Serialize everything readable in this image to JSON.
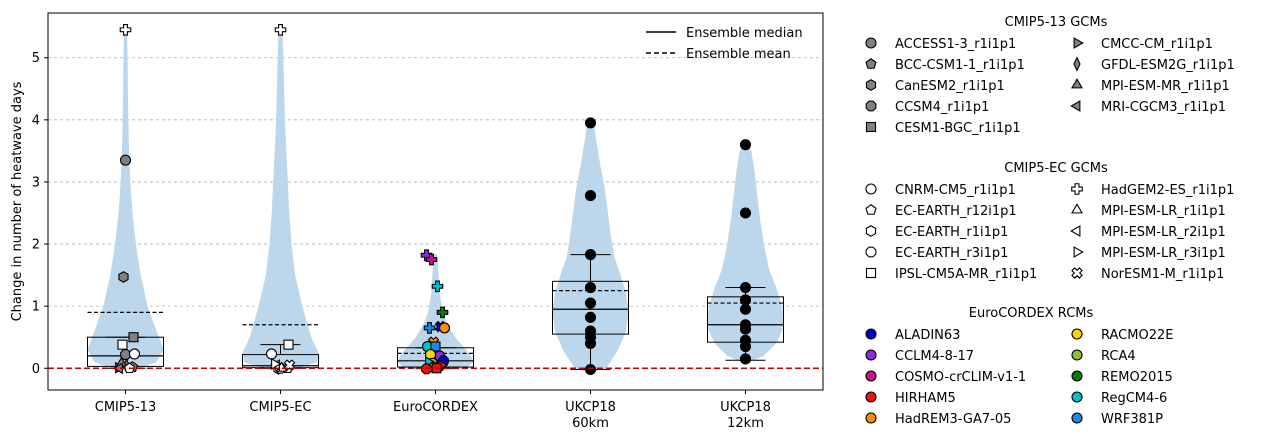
{
  "chart_data": {
    "type": "violin",
    "ylabel": "Change in number of heatwave days",
    "ylim": [
      -0.35,
      5.72
    ],
    "yticks": [
      0,
      1,
      2,
      3,
      4,
      5
    ],
    "grid": "horizontal dashed",
    "categories": [
      "CMIP5-13",
      "CMIP5-EC",
      "EuroCORDEX",
      "UKCP18\n60km",
      "UKCP18\n12km"
    ],
    "reference_line": 0,
    "plot_legend": {
      "position": "upper-right",
      "entries": [
        {
          "label": "Ensemble median",
          "style": "solid"
        },
        {
          "label": "Ensemble mean",
          "style": "dashed"
        }
      ]
    },
    "colors": {
      "violin": "#bcd6eb",
      "reference": "#c00000",
      "grid": "#b0b0b0"
    },
    "groups": [
      {
        "category": "CMIP5-13",
        "median": 0.2,
        "mean": 0.9,
        "q1": 0.03,
        "q3": 0.5,
        "wmin": 0,
        "wmax": 0.5,
        "violin": [
          [
            -0.05,
            0.02
          ],
          [
            0,
            0.2
          ],
          [
            0.1,
            0.45
          ],
          [
            0.3,
            0.55
          ],
          [
            0.6,
            0.45
          ],
          [
            1,
            0.32
          ],
          [
            1.5,
            0.22
          ],
          [
            2,
            0.15
          ],
          [
            2.5,
            0.1
          ],
          [
            3,
            0.07
          ],
          [
            3.5,
            0.05
          ],
          [
            4,
            0.04
          ],
          [
            4.5,
            0.035
          ],
          [
            5,
            0.03
          ],
          [
            5.45,
            0.02
          ]
        ],
        "points": [
          {
            "model": "ACCESS1-3_r1i1p1",
            "value": 3.35
          },
          {
            "model": "BCC-CSM1-1_r1i1p1",
            "value": 0.02
          },
          {
            "model": "CanESM2_r1i1p1",
            "value": 1.47
          },
          {
            "model": "CCSM4_r1i1p1",
            "value": 0.22
          },
          {
            "model": "CESM1-BGC_r1i1p1",
            "value": 0.5
          },
          {
            "model": "CMCC-CM_r1i1p1",
            "value": 0.01
          },
          {
            "model": "GFDL-ESM2G_r1i1p1",
            "value": 0.04
          },
          {
            "model": "MPI-ESM-MR_r1i1p1",
            "value": 0.08
          },
          {
            "model": "MRI-CGCM3_r1i1p1",
            "value": 0
          },
          {
            "model": "CNRM-CM5_r1i1p1",
            "value": 0.23
          },
          {
            "model": "EC-EARTH_r12i1p1",
            "value": 0
          },
          {
            "model": "IPSL-CM5A-MR_r1i1p1",
            "value": 0.38
          },
          {
            "model": "HadGEM2-ES_r1i1p1",
            "value": 5.45
          }
        ]
      },
      {
        "category": "CMIP5-EC",
        "median": 0.04,
        "mean": 0.7,
        "q1": 0.01,
        "q3": 0.22,
        "wmin": 0,
        "wmax": 0.38,
        "violin": [
          [
            -0.05,
            0.02
          ],
          [
            0,
            0.25
          ],
          [
            0.1,
            0.5
          ],
          [
            0.25,
            0.52
          ],
          [
            0.5,
            0.42
          ],
          [
            1,
            0.3
          ],
          [
            1.5,
            0.2
          ],
          [
            2,
            0.15
          ],
          [
            2.5,
            0.12
          ],
          [
            3,
            0.1
          ],
          [
            3.5,
            0.08
          ],
          [
            4,
            0.06
          ],
          [
            4.5,
            0.05
          ],
          [
            5,
            0.04
          ],
          [
            5.45,
            0.025
          ]
        ],
        "points": [
          {
            "model": "CNRM-CM5_r1i1p1",
            "value": 0.23
          },
          {
            "model": "EC-EARTH_r12i1p1",
            "value": 0
          },
          {
            "model": "EC-EARTH_r1i1p1",
            "value": -0.01
          },
          {
            "model": "EC-EARTH_r3i1p1",
            "value": 0
          },
          {
            "model": "IPSL-CM5A-MR_r1i1p1",
            "value": 0.38
          },
          {
            "model": "HadGEM2-ES_r1i1p1",
            "value": 5.45
          },
          {
            "model": "MPI-ESM-LR_r1i1p1",
            "value": 0
          },
          {
            "model": "MPI-ESM-LR_r2i1p1",
            "value": 0.05
          },
          {
            "model": "MPI-ESM-LR_r3i1p1",
            "value": 0.07
          },
          {
            "model": "NorESM1-M_r1i1p1",
            "value": 0.05
          }
        ]
      },
      {
        "category": "EuroCORDEX",
        "median": 0.12,
        "mean": 0.24,
        "q1": 0.02,
        "q3": 0.33,
        "wmin": 0,
        "wmax": 0.33,
        "violin": [
          [
            -0.05,
            0.05
          ],
          [
            0,
            0.5
          ],
          [
            0.1,
            0.62
          ],
          [
            0.2,
            0.58
          ],
          [
            0.35,
            0.45
          ],
          [
            0.5,
            0.32
          ],
          [
            0.7,
            0.2
          ],
          [
            0.9,
            0.12
          ],
          [
            1.2,
            0.07
          ],
          [
            1.5,
            0.05
          ],
          [
            1.8,
            0.03
          ],
          [
            1.85,
            0.01
          ]
        ],
        "points": [
          {
            "model": "HadGEM2-ES",
            "rcm": "CCLM4-8-17",
            "value": 1.82
          },
          {
            "model": "HadGEM2-ES",
            "rcm": "COSMO-crCLIM-v1-1",
            "value": 1.75
          },
          {
            "model": "HadGEM2-ES",
            "rcm": "RegCM4-6",
            "value": 1.32
          },
          {
            "model": "HadGEM2-ES",
            "rcm": "REMO2015",
            "value": 0.9
          },
          {
            "model": "HadGEM2-ES",
            "rcm": "WRF381P",
            "value": 0.65
          },
          {
            "model": "NorESM1-M",
            "rcm": "ALADIN63",
            "value": 0.67
          },
          {
            "model": "NorESM1-M",
            "rcm": "HadREM3-GA7-05",
            "value": 0.42
          },
          {
            "model": "CNRM-CM5",
            "rcm": "HadREM3-GA7-05",
            "value": 0.65
          },
          {
            "model": "CNRM-CM5",
            "rcm": "RegCM4-6",
            "value": 0.35
          },
          {
            "model": "IPSL-CM5A-MR",
            "rcm": "WRF381P",
            "value": 0.35
          },
          {
            "model": "CNRM-CM5",
            "rcm": "CCLM4-8-17",
            "value": 0.2
          },
          {
            "model": "EC-EARTH",
            "rcm": "RACMO22E",
            "value": 0.22
          },
          {
            "model": "EC-EARTH",
            "rcm": "ALADIN63",
            "value": 0.12
          },
          {
            "model": "EC-EARTH",
            "rcm": "RCA4",
            "value": 0.08
          },
          {
            "model": "EC-EARTH",
            "rcm": "REMO2015",
            "value": 0.02
          },
          {
            "model": "MPI-ESM-LR",
            "rcm": "RegCM4-6",
            "value": 0.1
          },
          {
            "model": "MPI-ESM-LR",
            "rcm": "HIRHAM5",
            "value": 0.05
          },
          {
            "model": "NorESM1-M",
            "rcm": "RACMO22E",
            "value": 0.02
          },
          {
            "model": "IPSL-CM5A-MR",
            "rcm": "HIRHAM5",
            "value": 0
          },
          {
            "model": "EC-EARTH",
            "rcm": "HIRHAM5",
            "value": -0.01
          }
        ]
      },
      {
        "category": "UKCP18\n60km",
        "median": 0.95,
        "mean": 1.25,
        "q1": 0.55,
        "q3": 1.4,
        "wmin": -0.02,
        "wmax": 1.83,
        "violin": [
          [
            -0.05,
            0.05
          ],
          [
            0,
            0.2
          ],
          [
            0.3,
            0.35
          ],
          [
            0.6,
            0.45
          ],
          [
            0.9,
            0.48
          ],
          [
            1.2,
            0.45
          ],
          [
            1.5,
            0.38
          ],
          [
            1.8,
            0.3
          ],
          [
            2.1,
            0.26
          ],
          [
            2.5,
            0.22
          ],
          [
            2.9,
            0.18
          ],
          [
            3.3,
            0.12
          ],
          [
            3.7,
            0.07
          ],
          [
            3.95,
            0.04
          ],
          [
            4,
            0.01
          ]
        ],
        "points": [
          {
            "model": "UKCP18 60km",
            "value": 3.95
          },
          {
            "model": "UKCP18 60km",
            "value": 2.78
          },
          {
            "model": "UKCP18 60km",
            "value": 1.83
          },
          {
            "model": "UKCP18 60km",
            "value": 1.3
          },
          {
            "model": "UKCP18 60km",
            "value": 1.05
          },
          {
            "model": "UKCP18 60km",
            "value": 0.82
          },
          {
            "model": "UKCP18 60km",
            "value": 0.6
          },
          {
            "model": "UKCP18 60km",
            "value": 0.5
          },
          {
            "model": "UKCP18 60km",
            "value": 0.4
          },
          {
            "model": "UKCP18 60km",
            "value": -0.02
          }
        ]
      },
      {
        "category": "UKCP18\n12km",
        "median": 0.7,
        "mean": 1.05,
        "q1": 0.42,
        "q3": 1.15,
        "wmin": 0.13,
        "wmax": 1.3,
        "violin": [
          [
            0.1,
            0.05
          ],
          [
            0.2,
            0.25
          ],
          [
            0.4,
            0.42
          ],
          [
            0.6,
            0.5
          ],
          [
            0.8,
            0.52
          ],
          [
            1,
            0.5
          ],
          [
            1.3,
            0.42
          ],
          [
            1.6,
            0.32
          ],
          [
            2,
            0.25
          ],
          [
            2.4,
            0.2
          ],
          [
            2.8,
            0.16
          ],
          [
            3.2,
            0.12
          ],
          [
            3.5,
            0.08
          ],
          [
            3.6,
            0.03
          ]
        ],
        "points": [
          {
            "model": "UKCP18 12km",
            "value": 3.6
          },
          {
            "model": "UKCP18 12km",
            "value": 2.5
          },
          {
            "model": "UKCP18 12km",
            "value": 1.3
          },
          {
            "model": "UKCP18 12km",
            "value": 1.1
          },
          {
            "model": "UKCP18 12km",
            "value": 0.95
          },
          {
            "model": "UKCP18 12km",
            "value": 0.7
          },
          {
            "model": "UKCP18 12km",
            "value": 0.63
          },
          {
            "model": "UKCP18 12km",
            "value": 0.45
          },
          {
            "model": "UKCP18 12km",
            "value": 0.35
          },
          {
            "model": "UKCP18 12km",
            "value": 0.15
          }
        ]
      }
    ],
    "model_legend": [
      {
        "title": "CMIP5-13 GCMs",
        "entries": [
          {
            "label": "ACCESS1-3_r1i1p1",
            "marker": "circle",
            "fill": "#808080"
          },
          {
            "label": "BCC-CSM1-1_r1i1p1",
            "marker": "pentagon",
            "fill": "#808080"
          },
          {
            "label": "CanESM2_r1i1p1",
            "marker": "hexagon",
            "fill": "#808080"
          },
          {
            "label": "CCSM4_r1i1p1",
            "marker": "octagon",
            "fill": "#808080"
          },
          {
            "label": "CESM1-BGC_r1i1p1",
            "marker": "square",
            "fill": "#808080"
          },
          {
            "label": "CMCC-CM_r1i1p1",
            "marker": "triangle-right",
            "fill": "#808080"
          },
          {
            "label": "GFDL-ESM2G_r1i1p1",
            "marker": "thin-diamond",
            "fill": "#808080"
          },
          {
            "label": "MPI-ESM-MR_r1i1p1",
            "marker": "triangle-up",
            "fill": "#808080"
          },
          {
            "label": "MRI-CGCM3_r1i1p1",
            "marker": "triangle-left",
            "fill": "#808080"
          }
        ]
      },
      {
        "title": "CMIP5-EC GCMs",
        "entries": [
          {
            "label": "CNRM-CM5_r1i1p1",
            "marker": "circle",
            "fill": "#ffffff"
          },
          {
            "label": "EC-EARTH_r12i1p1",
            "marker": "pentagon",
            "fill": "#ffffff"
          },
          {
            "label": "EC-EARTH_r1i1p1",
            "marker": "hexagon",
            "fill": "#ffffff"
          },
          {
            "label": "EC-EARTH_r3i1p1",
            "marker": "octagon",
            "fill": "#ffffff"
          },
          {
            "label": "IPSL-CM5A-MR_r1i1p1",
            "marker": "square",
            "fill": "#ffffff"
          },
          {
            "label": "HadGEM2-ES_r1i1p1",
            "marker": "plus",
            "fill": "#ffffff"
          },
          {
            "label": "MPI-ESM-LR_r1i1p1",
            "marker": "triangle-up",
            "fill": "#ffffff"
          },
          {
            "label": "MPI-ESM-LR_r2i1p1",
            "marker": "triangle-left",
            "fill": "#ffffff"
          },
          {
            "label": "MPI-ESM-LR_r3i1p1",
            "marker": "triangle-right",
            "fill": "#ffffff"
          },
          {
            "label": "NorESM1-M_r1i1p1",
            "marker": "x",
            "fill": "#ffffff"
          }
        ]
      },
      {
        "title": "EuroCORDEX RCMs",
        "entries": [
          {
            "label": "ALADIN63",
            "marker": "circle",
            "fill": "#0000cc"
          },
          {
            "label": "CCLM4-8-17",
            "marker": "circle",
            "fill": "#8a2be2"
          },
          {
            "label": "COSMO-crCLIM-v1-1",
            "marker": "circle",
            "fill": "#c71585"
          },
          {
            "label": "HIRHAM5",
            "marker": "circle",
            "fill": "#ee1111"
          },
          {
            "label": "HadREM3-GA7-05",
            "marker": "circle",
            "fill": "#ff8c00"
          },
          {
            "label": "RACMO22E",
            "marker": "circle",
            "fill": "#ffd700"
          },
          {
            "label": "RCA4",
            "marker": "circle",
            "fill": "#8fbc3f"
          },
          {
            "label": "REMO2015",
            "marker": "circle",
            "fill": "#0a7a0a"
          },
          {
            "label": "RegCM4-6",
            "marker": "circle",
            "fill": "#00bfcf"
          },
          {
            "label": "WRF381P",
            "marker": "circle",
            "fill": "#1e88e5"
          }
        ]
      }
    ]
  }
}
